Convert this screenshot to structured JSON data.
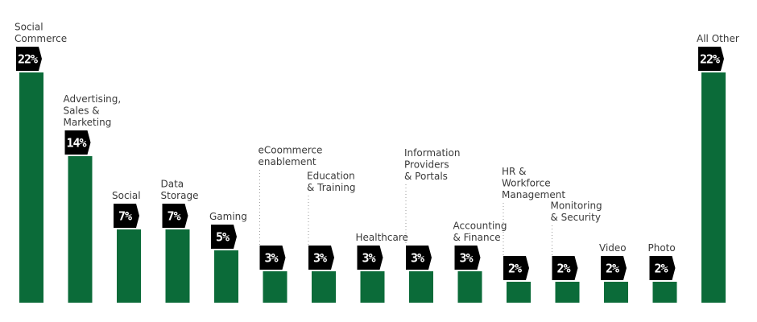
{
  "chart_data": {
    "type": "bar",
    "title": "",
    "xlabel": "",
    "ylabel": "",
    "ylim": [
      0,
      22
    ],
    "unit": "%",
    "categories": [
      "Social Commerce",
      "Advertising, Sales & Marketing",
      "Social",
      "Data Storage",
      "Gaming",
      "eCoommerce enablement",
      "Education & Training",
      "Healthcare",
      "Information Providers & Portals",
      "Accounting & Finance",
      "HR & Workforce Management",
      "Monitoring & Security",
      "Video",
      "Photo",
      "All Other"
    ],
    "label_lines": [
      [
        "Social",
        "Commerce"
      ],
      [
        "Advertising,",
        "Sales &",
        "Marketing"
      ],
      [
        "Social"
      ],
      [
        "Data",
        "Storage"
      ],
      [
        "Gaming"
      ],
      [
        "eCoommerce",
        "enablement"
      ],
      [
        "Education",
        "& Training"
      ],
      [
        "Healthcare"
      ],
      [
        "Information",
        "Providers",
        "& Portals"
      ],
      [
        "Accounting",
        "& Finance"
      ],
      [
        "HR &",
        "Workforce",
        "Management"
      ],
      [
        "Monitoring",
        "& Security"
      ],
      [
        "Video"
      ],
      [
        "Photo"
      ],
      [
        "All Other"
      ]
    ],
    "values": [
      22,
      14,
      7,
      7,
      5,
      3,
      3,
      3,
      3,
      3,
      2,
      2,
      2,
      2,
      22
    ],
    "value_labels": [
      "22%",
      "14%",
      "7%",
      "7%",
      "5%",
      "3%",
      "3%",
      "3%",
      "3%",
      "3%",
      "2%",
      "2%",
      "2%",
      "2%",
      "22%"
    ],
    "bar_color": "#0b6b39",
    "badge_color": "#000000",
    "grid": false,
    "legend": "none"
  }
}
